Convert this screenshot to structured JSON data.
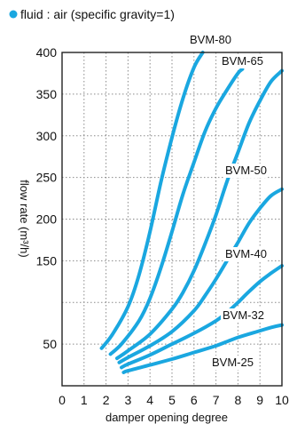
{
  "chart_data": {
    "type": "line",
    "title": "fluid : air (specific gravity=1)",
    "marker_color": "#1aa7e0",
    "line_color": "#1aa7e0",
    "xlabel": "damper opening degree",
    "ylabel": "flow rate (m³/h)",
    "xlim": [
      0,
      10
    ],
    "ylim": [
      0,
      400
    ],
    "grid": true,
    "x_ticks": [
      "0",
      "1",
      "2",
      "3",
      "4",
      "5",
      "6",
      "7",
      "8",
      "9",
      "10"
    ],
    "y_ticks": [
      {
        "value": 50,
        "label": "50"
      },
      {
        "value": 150,
        "label": "150"
      },
      {
        "value": 200,
        "label": "200"
      },
      {
        "value": 250,
        "label": "250"
      },
      {
        "value": 300,
        "label": "300"
      },
      {
        "value": 350,
        "label": "350"
      },
      {
        "value": 400,
        "label": "400"
      }
    ],
    "y_grid": [
      50,
      100,
      150,
      200,
      250,
      300,
      350,
      400
    ],
    "series": [
      {
        "name": "BVM-80",
        "points": [
          [
            1.8,
            45
          ],
          [
            2.3,
            62
          ],
          [
            3.0,
            95
          ],
          [
            3.5,
            133
          ],
          [
            4.0,
            185
          ],
          [
            4.5,
            245
          ],
          [
            5.0,
            298
          ],
          [
            5.5,
            345
          ],
          [
            6.0,
            382
          ],
          [
            6.4,
            400
          ]
        ]
      },
      {
        "name": "BVM-65",
        "points": [
          [
            2.2,
            38
          ],
          [
            2.7,
            50
          ],
          [
            3.5,
            78
          ],
          [
            4.0,
            105
          ],
          [
            4.5,
            142
          ],
          [
            5.0,
            185
          ],
          [
            5.5,
            230
          ],
          [
            6.0,
            268
          ],
          [
            6.5,
            305
          ],
          [
            7.0,
            333
          ],
          [
            7.5,
            355
          ],
          [
            8.0,
            375
          ],
          [
            8.2,
            380
          ]
        ]
      },
      {
        "name": "BVM-50",
        "points": [
          [
            2.5,
            33
          ],
          [
            3.0,
            42
          ],
          [
            4.0,
            62
          ],
          [
            5.0,
            92
          ],
          [
            5.5,
            112
          ],
          [
            6.0,
            138
          ],
          [
            6.5,
            170
          ],
          [
            7.0,
            205
          ],
          [
            7.5,
            245
          ],
          [
            8.0,
            280
          ],
          [
            8.5,
            315
          ],
          [
            9.0,
            342
          ],
          [
            9.5,
            365
          ],
          [
            10.0,
            378
          ]
        ]
      },
      {
        "name": "BVM-40",
        "points": [
          [
            2.6,
            28
          ],
          [
            3.0,
            34
          ],
          [
            4.0,
            48
          ],
          [
            5.0,
            65
          ],
          [
            6.0,
            90
          ],
          [
            6.5,
            108
          ],
          [
            7.0,
            128
          ],
          [
            7.5,
            150
          ],
          [
            8.0,
            172
          ],
          [
            8.5,
            195
          ],
          [
            9.0,
            213
          ],
          [
            9.5,
            228
          ],
          [
            10.0,
            236
          ]
        ]
      },
      {
        "name": "BVM-32",
        "points": [
          [
            2.7,
            22
          ],
          [
            3.0,
            26
          ],
          [
            4.0,
            37
          ],
          [
            5.0,
            50
          ],
          [
            6.0,
            63
          ],
          [
            7.0,
            78
          ],
          [
            7.5,
            88
          ],
          [
            8.0,
            100
          ],
          [
            8.5,
            113
          ],
          [
            9.0,
            125
          ],
          [
            9.5,
            135
          ],
          [
            10.0,
            144
          ]
        ]
      },
      {
        "name": "BVM-25",
        "points": [
          [
            2.8,
            16
          ],
          [
            3.0,
            18
          ],
          [
            4.0,
            25
          ],
          [
            5.0,
            32
          ],
          [
            6.0,
            40
          ],
          [
            7.0,
            48
          ],
          [
            8.0,
            58
          ],
          [
            9.0,
            66
          ],
          [
            9.5,
            70
          ],
          [
            10.0,
            73
          ]
        ]
      }
    ]
  }
}
